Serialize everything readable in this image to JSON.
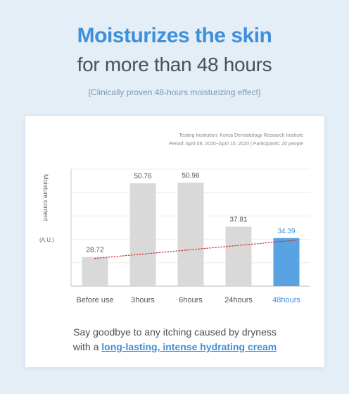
{
  "headline": {
    "title": "Moisturizes the skin",
    "subtitle": "for more than 48 hours",
    "note": "[Clinically proven 48-hours moisturizing effect]"
  },
  "study": {
    "institution": "Testing Institution: Korea Dermatology Research Institute",
    "period": "Period: April 08, 2020~April 10, 2020 | Participants: 20 people"
  },
  "caption": {
    "line1": "Say goodbye to any itching caused by dryness",
    "line2_prefix": "with a ",
    "line2_highlight": "long-lasting, intense hydrating cream"
  },
  "colors": {
    "accent": "#3f8fd9",
    "bar_default": "#d9d9d9",
    "bar_highlight": "#5aa3e3",
    "trend_line": "#cc2b2b"
  },
  "chart_data": {
    "type": "bar",
    "categories": [
      "Before use",
      "3hours",
      "6hours",
      "24hours",
      "48hours"
    ],
    "values": [
      28.72,
      50.76,
      50.96,
      37.81,
      34.39
    ],
    "value_labels": [
      "28.72",
      "50.76",
      "50.96",
      "37.81",
      "34.39"
    ],
    "highlight_index": 4,
    "ylabel": "Moisture content",
    "yunit": "(A.U.)",
    "ylim": [
      20,
      55
    ],
    "grid": true,
    "trend": {
      "style": "dotted",
      "from": "Before use",
      "to": "48hours",
      "values": [
        28.72,
        34.39
      ]
    }
  }
}
